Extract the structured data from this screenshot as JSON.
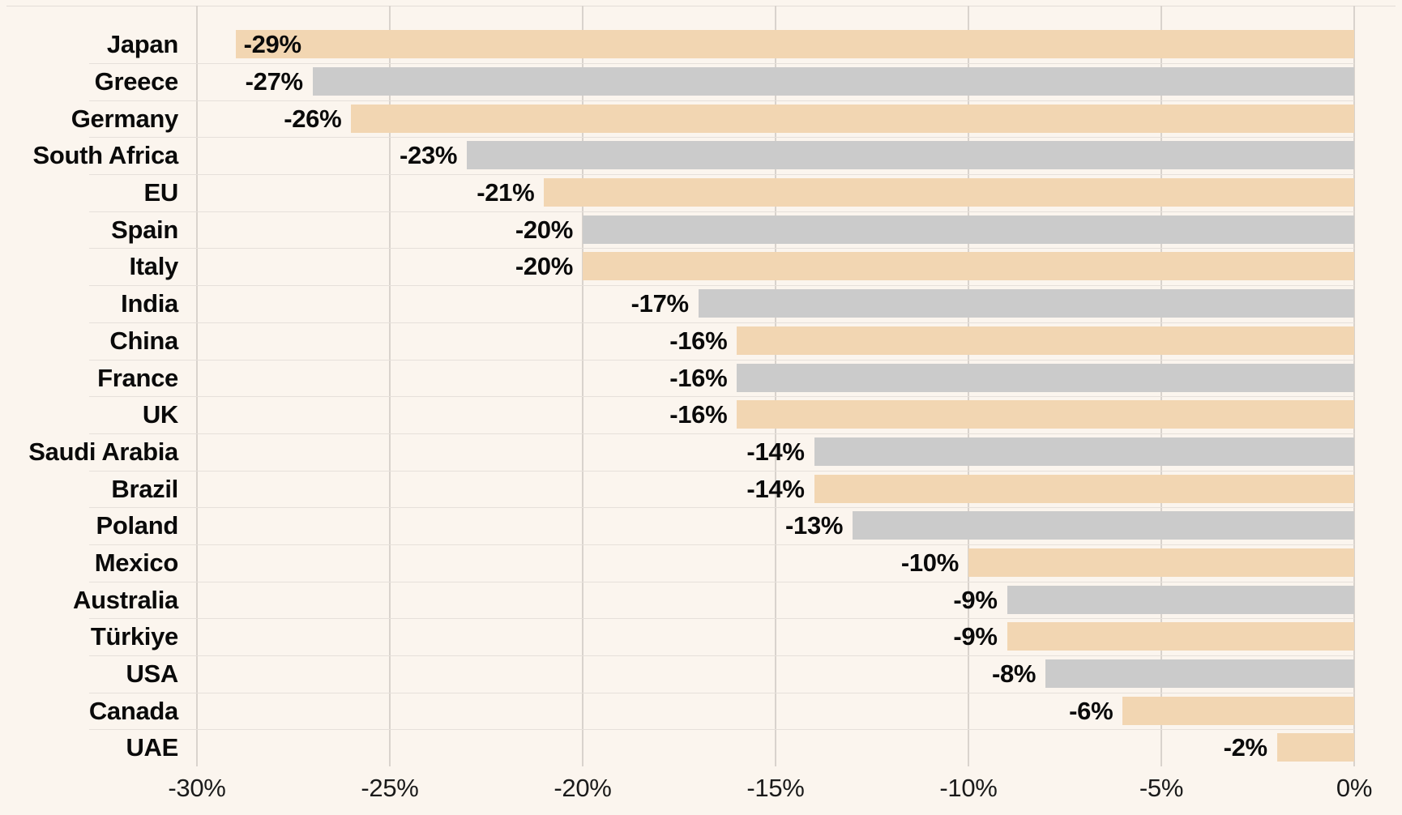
{
  "chart_data": {
    "type": "bar",
    "orientation": "horizontal",
    "title": "",
    "xlabel": "",
    "ylabel": "",
    "unit": "%",
    "xlim": [
      -30,
      0
    ],
    "grid": true,
    "legend": "none",
    "palette": {
      "peach": "#F2D6B2",
      "gray": "#CBCBCB"
    },
    "background": "#FBF5EE",
    "gridline_color": "#D9D3CD",
    "separator_color": "#E6E0DA",
    "text_color": "#0A0A0A",
    "categories": [
      "Japan",
      "Greece",
      "Germany",
      "South Africa",
      "EU",
      "Spain",
      "Italy",
      "India",
      "China",
      "France",
      "UK",
      "Saudi Arabia",
      "Brazil",
      "Poland",
      "Mexico",
      "Australia",
      "Türkiye",
      "USA",
      "Canada",
      "UAE"
    ],
    "values": [
      -29,
      -27,
      -26,
      -23,
      -21,
      -20,
      -20,
      -17,
      -16,
      -16,
      -16,
      -14,
      -14,
      -13,
      -10,
      -9,
      -9,
      -8,
      -6,
      -2
    ],
    "value_labels": [
      "-29%",
      "-27%",
      "-26%",
      "-23%",
      "-21%",
      "-20%",
      "-20%",
      "-17%",
      "-16%",
      "-16%",
      "-16%",
      "-14%",
      "-14%",
      "-13%",
      "-10%",
      "-9%",
      "-9%",
      "-8%",
      "-6%",
      "-2%"
    ],
    "bar_color_keys": [
      "peach",
      "gray",
      "peach",
      "gray",
      "peach",
      "gray",
      "peach",
      "gray",
      "peach",
      "gray",
      "peach",
      "gray",
      "peach",
      "gray",
      "peach",
      "gray",
      "peach",
      "gray",
      "peach",
      "peach"
    ],
    "value_label_positions": [
      "inside",
      "outside",
      "outside",
      "outside",
      "outside",
      "outside",
      "outside",
      "outside",
      "outside",
      "outside",
      "outside",
      "outside",
      "outside",
      "outside",
      "outside",
      "outside",
      "outside",
      "outside",
      "outside",
      "outside"
    ],
    "x_ticks": [
      {
        "label": "-30%",
        "value": -30
      },
      {
        "label": "-25%",
        "value": -25
      },
      {
        "label": "-20%",
        "value": -20
      },
      {
        "label": "-15%",
        "value": -15
      },
      {
        "label": "-10%",
        "value": -10
      },
      {
        "label": "-5%",
        "value": -5
      },
      {
        "label": "0%",
        "value": 0
      }
    ]
  }
}
